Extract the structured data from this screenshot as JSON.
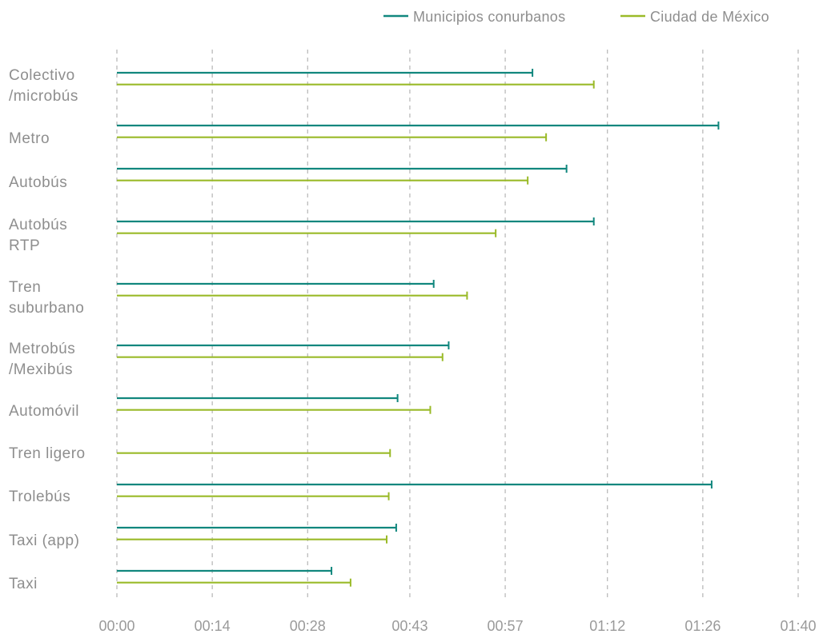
{
  "chart_data": {
    "type": "bar",
    "orientation": "horizontal",
    "title": "",
    "xlabel": "",
    "ylabel": "",
    "x_unit": "minutes",
    "xlim": [
      0,
      100
    ],
    "x_ticks": [
      0,
      14,
      28,
      43,
      57,
      72,
      86,
      100
    ],
    "x_tick_labels": [
      "00:00",
      "00:14",
      "00:28",
      "00:43",
      "00:57",
      "01:12",
      "01:26",
      "01:40"
    ],
    "grid": "vertical-dashed",
    "legend_position": "top-right",
    "categories": [
      [
        "Colectivo",
        "/microbús"
      ],
      [
        "Metro"
      ],
      [
        "Autobús"
      ],
      [
        "Autobús",
        "RTP"
      ],
      [
        "Tren",
        "suburbano"
      ],
      [
        "Metrobús",
        "/Mexibús"
      ],
      [
        "Automóvil"
      ],
      [
        "Tren ligero"
      ],
      [
        "Trolebús"
      ],
      [
        "Taxi (app)"
      ],
      [
        "Taxi"
      ]
    ],
    "series": [
      {
        "name": "Municipios conurbanos",
        "color": "#11877e",
        "values": [
          61,
          88.3,
          66,
          70,
          46.5,
          48.7,
          41.2,
          null,
          87.3,
          41,
          31.5
        ]
      },
      {
        "name": "Ciudad de México",
        "color": "#9aba28",
        "values": [
          70,
          63,
          60.3,
          55.6,
          51.4,
          47.8,
          46,
          40.1,
          39.9,
          39.6,
          34.3
        ]
      }
    ]
  }
}
